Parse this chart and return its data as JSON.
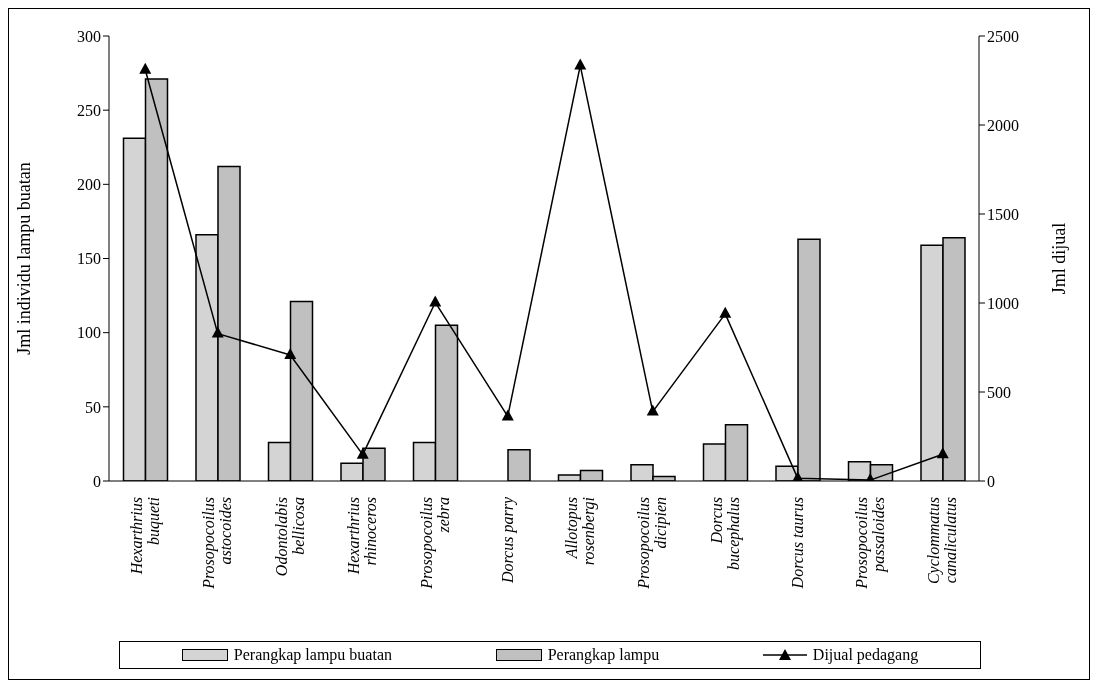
{
  "chart_data": {
    "type": "bar",
    "ylabel": "Jml individu lampu buatan",
    "y2label": "Jml  dijual",
    "categories": [
      "Hexarthrius buqueti",
      "Prosopocoilus astocoides",
      "Odontolabis bellicosa",
      "Hexarthrius rhinoceros",
      "Prosopocoilus zebra",
      "Dorcus parry",
      "Allotopus rosenbergi",
      "Prosopocoilus dicipien",
      "Dorcus bucephalus",
      "Dorcus taurus",
      "Prosopocoilus passaloides",
      "Cyclommatus canaliculatus"
    ],
    "series": [
      {
        "name": "Perangkap lampu buatan",
        "color": "#d4d4d4",
        "values": [
          231,
          166,
          26,
          12,
          26,
          0,
          4,
          11,
          25,
          10,
          13,
          159
        ]
      },
      {
        "name": "Perangkap lampu",
        "color": "#c0c0c0",
        "values": [
          271,
          212,
          121,
          22,
          105,
          21,
          7,
          3,
          38,
          163,
          11,
          164
        ]
      },
      {
        "name": "Dijual pedagang",
        "type": "line",
        "axis": "y2",
        "color": "#000000",
        "marker": "triangle",
        "values": [
          2310,
          828,
          708,
          148,
          1003,
          363,
          2334,
          390,
          939,
          15,
          5,
          150
        ]
      }
    ],
    "ylim": [
      0,
      300
    ],
    "yticks": [
      0,
      50,
      100,
      150,
      200,
      250,
      300
    ],
    "y2lim": [
      0,
      2500
    ],
    "y2ticks": [
      0,
      500,
      1000,
      1500,
      2000,
      2500
    ],
    "legend": "bottom"
  }
}
